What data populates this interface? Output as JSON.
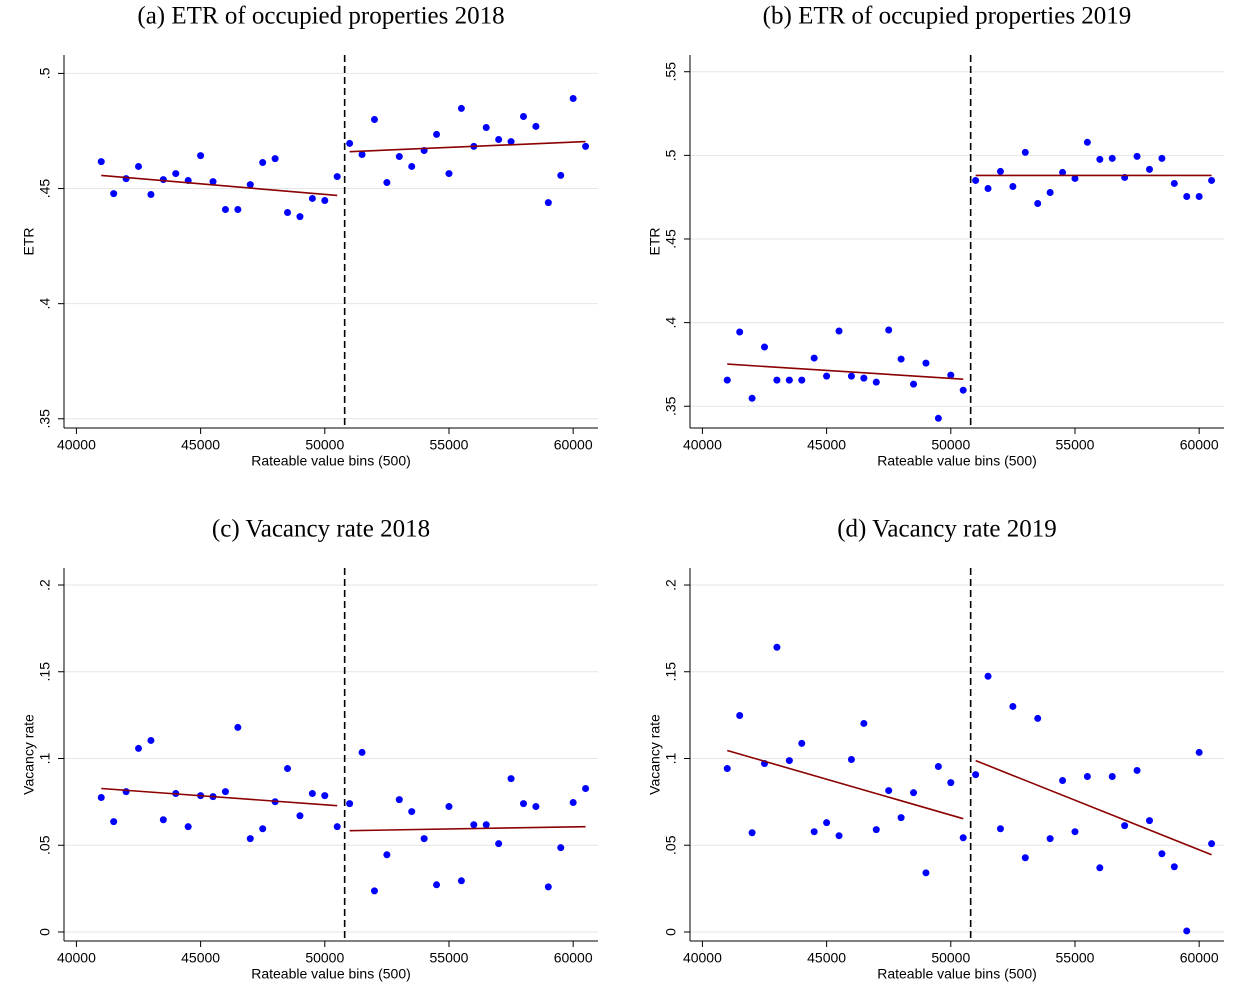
{
  "chart_data": [
    {
      "type": "scatter",
      "title": "(a) ETR of occupied properties 2018",
      "xlabel": "Rateable value bins (500)",
      "ylabel": "ETR",
      "x": [
        41000,
        41500,
        42000,
        42500,
        43000,
        43500,
        44000,
        44500,
        45000,
        45500,
        46000,
        46500,
        47000,
        47500,
        48000,
        48500,
        49000,
        49500,
        50000,
        50500,
        51000,
        51500,
        52000,
        52500,
        53000,
        53500,
        54000,
        54500,
        55000,
        55500,
        56000,
        56500,
        57000,
        57500,
        58000,
        58500,
        59000,
        59500,
        60000,
        60500
      ],
      "values": [
        0.4617,
        0.4478,
        0.4543,
        0.4596,
        0.4474,
        0.4539,
        0.4565,
        0.4535,
        0.4643,
        0.453,
        0.4409,
        0.4409,
        0.4517,
        0.4613,
        0.463,
        0.4396,
        0.4378,
        0.4457,
        0.4448,
        0.4552,
        0.4696,
        0.4648,
        0.48,
        0.4526,
        0.4639,
        0.4596,
        0.4665,
        0.4735,
        0.4565,
        0.4848,
        0.4683,
        0.4765,
        0.4713,
        0.4704,
        0.4813,
        0.477,
        0.4439,
        0.4557,
        0.4891,
        0.4683
      ],
      "color": "#0000ff",
      "fits": [
        {
          "x": [
            41000,
            50500
          ],
          "values": [
            0.4557,
            0.447
          ]
        },
        {
          "x": [
            51000,
            60500
          ],
          "values": [
            0.466,
            0.4704
          ]
        }
      ],
      "fit_color": "#8b0000",
      "threshold": 50800,
      "xlim": [
        39500,
        61000
      ],
      "xticks": [
        40000,
        45000,
        50000,
        55000,
        60000
      ],
      "ylim": [
        0.346,
        0.508
      ],
      "yticks": [
        {
          "value": 0.35,
          "label": ".35"
        },
        {
          "value": 0.4,
          "label": ".4"
        },
        {
          "value": 0.45,
          "label": ".45"
        },
        {
          "value": 0.5,
          "label": ".5"
        }
      ],
      "grid": true
    },
    {
      "type": "scatter",
      "title": "(b) ETR of occupied properties 2019",
      "xlabel": "Rateable value bins (500)",
      "ylabel": "ETR",
      "x": [
        41000,
        41500,
        42000,
        42500,
        43000,
        43500,
        44000,
        44500,
        45000,
        45500,
        46000,
        46500,
        47000,
        47500,
        48000,
        48500,
        49000,
        49500,
        50000,
        50500,
        51000,
        51500,
        52000,
        52500,
        53000,
        53500,
        54000,
        54500,
        55000,
        55500,
        56000,
        56500,
        57000,
        57500,
        58000,
        58500,
        59000,
        59500,
        60000,
        60500
      ],
      "values": [
        0.3656,
        0.3944,
        0.3548,
        0.3854,
        0.3656,
        0.3656,
        0.3656,
        0.3788,
        0.368,
        0.395,
        0.368,
        0.3668,
        0.3644,
        0.3956,
        0.3782,
        0.3632,
        0.3758,
        0.3428,
        0.3686,
        0.3596,
        0.485,
        0.4802,
        0.4904,
        0.4814,
        0.5018,
        0.4712,
        0.4778,
        0.4898,
        0.4862,
        0.5078,
        0.4976,
        0.4982,
        0.4868,
        0.4994,
        0.4916,
        0.4982,
        0.4832,
        0.4754,
        0.4754,
        0.485
      ],
      "color": "#0000ff",
      "fits": [
        {
          "x": [
            41000,
            50500
          ],
          "values": [
            0.3752,
            0.3662
          ]
        },
        {
          "x": [
            51000,
            60500
          ],
          "values": [
            0.488,
            0.488
          ]
        }
      ],
      "fit_color": "#8b0000",
      "threshold": 50800,
      "xlim": [
        39500,
        61000
      ],
      "xticks": [
        40000,
        45000,
        50000,
        55000,
        60000
      ],
      "ylim": [
        0.337,
        0.56
      ],
      "yticks": [
        {
          "value": 0.35,
          "label": ".35"
        },
        {
          "value": 0.4,
          "label": ".4"
        },
        {
          "value": 0.45,
          "label": ".45"
        },
        {
          "value": 0.5,
          "label": ".5"
        },
        {
          "value": 0.55,
          "label": ".55"
        }
      ],
      "grid": true
    },
    {
      "type": "scatter",
      "title": "(c) Vacancy rate 2018",
      "xlabel": "Rateable value bins (500)",
      "ylabel": "Vacancy rate",
      "x": [
        41000,
        41500,
        42000,
        42500,
        43000,
        43500,
        44000,
        44500,
        45000,
        45500,
        46000,
        46500,
        47000,
        47500,
        48000,
        48500,
        49000,
        49500,
        50000,
        50500,
        51000,
        51500,
        52000,
        52500,
        53000,
        53500,
        54000,
        54500,
        55000,
        55500,
        56000,
        56500,
        57000,
        57500,
        58000,
        58500,
        59000,
        59500,
        60000,
        60500
      ],
      "values": [
        0.0775,
        0.0636,
        0.0809,
        0.1058,
        0.1104,
        0.0647,
        0.0798,
        0.0607,
        0.0786,
        0.078,
        0.0809,
        0.1179,
        0.0538,
        0.0595,
        0.0751,
        0.0942,
        0.067,
        0.0798,
        0.0786,
        0.0607,
        0.074,
        0.1035,
        0.0237,
        0.0445,
        0.0763,
        0.0694,
        0.0538,
        0.0272,
        0.0723,
        0.0295,
        0.0618,
        0.0618,
        0.0509,
        0.0884,
        0.074,
        0.0723,
        0.026,
        0.0486,
        0.0746,
        0.0827
      ],
      "color": "#0000ff",
      "fits": [
        {
          "x": [
            41000,
            50500
          ],
          "values": [
            0.0827,
            0.0728
          ]
        },
        {
          "x": [
            51000,
            60500
          ],
          "values": [
            0.0584,
            0.0607
          ]
        }
      ],
      "fit_color": "#8b0000",
      "threshold": 50800,
      "xlim": [
        39500,
        61000
      ],
      "xticks": [
        40000,
        45000,
        50000,
        55000,
        60000
      ],
      "ylim": [
        -0.0052,
        0.2098
      ],
      "yticks": [
        0,
        {
          "value": 0.05,
          "label": ".05"
        },
        {
          "value": 0.1,
          "label": ".1"
        },
        {
          "value": 0.15,
          "label": ".15"
        },
        {
          "value": 0.2,
          "label": ".2"
        }
      ],
      "grid": true
    },
    {
      "type": "scatter",
      "title": "(d) Vacancy rate 2019",
      "xlabel": "Rateable value bins (500)",
      "ylabel": "Vacancy rate",
      "x": [
        41000,
        41500,
        42000,
        42500,
        43000,
        43500,
        44000,
        44500,
        45000,
        45500,
        46000,
        46500,
        47000,
        47500,
        48000,
        48500,
        49000,
        49500,
        50000,
        50500,
        51000,
        51500,
        52000,
        52500,
        53000,
        53500,
        54000,
        54500,
        55000,
        55500,
        56000,
        56500,
        57000,
        57500,
        58000,
        58500,
        59000,
        59500,
        60000,
        60500
      ],
      "values": [
        0.0942,
        0.1248,
        0.0572,
        0.0971,
        0.1641,
        0.0988,
        0.1087,
        0.0578,
        0.063,
        0.0555,
        0.0994,
        0.1202,
        0.059,
        0.0815,
        0.0659,
        0.0803,
        0.0341,
        0.0954,
        0.0861,
        0.0543,
        0.0907,
        0.1474,
        0.0595,
        0.13,
        0.0428,
        0.1231,
        0.0538,
        0.0873,
        0.0578,
        0.0896,
        0.037,
        0.0896,
        0.0613,
        0.0931,
        0.0642,
        0.0451,
        0.0376,
        0.0006,
        0.1035,
        0.0509
      ],
      "color": "#0000ff",
      "fits": [
        {
          "x": [
            41000,
            50500
          ],
          "values": [
            0.1046,
            0.0653
          ]
        },
        {
          "x": [
            51000,
            60500
          ],
          "values": [
            0.0988,
            0.0445
          ]
        }
      ],
      "fit_color": "#8b0000",
      "threshold": 50800,
      "xlim": [
        39500,
        61000
      ],
      "xticks": [
        40000,
        45000,
        50000,
        55000,
        60000
      ],
      "ylim": [
        -0.0052,
        0.2098
      ],
      "yticks": [
        0,
        {
          "value": 0.05,
          "label": ".05"
        },
        {
          "value": 0.1,
          "label": ".1"
        },
        {
          "value": 0.15,
          "label": ".15"
        },
        {
          "value": 0.2,
          "label": ".2"
        }
      ],
      "grid": true
    }
  ]
}
